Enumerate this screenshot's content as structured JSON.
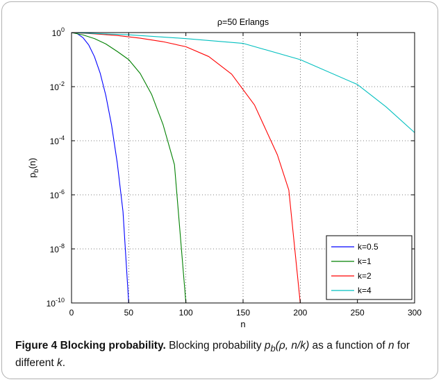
{
  "chart_data": {
    "type": "line",
    "title": "ρ=50 Erlangs",
    "xlabel": "n",
    "ylabel": "p_b(n)",
    "ylabel_main": "p",
    "ylabel_sub": "b",
    "ylabel_tail": "(n)",
    "xlim": [
      0,
      300
    ],
    "ylim": [
      1e-10,
      1
    ],
    "yscale": "log",
    "grid": true,
    "legend_position": "bottom-right",
    "xticks": [
      "0",
      "50",
      "100",
      "150",
      "200",
      "250",
      "300"
    ],
    "yticks": [
      {
        "base": "10",
        "exp": "0"
      },
      {
        "base": "10",
        "exp": "-2"
      },
      {
        "base": "10",
        "exp": "-4"
      },
      {
        "base": "10",
        "exp": "-6"
      },
      {
        "base": "10",
        "exp": "-8"
      },
      {
        "base": "10",
        "exp": "-10"
      }
    ],
    "series": [
      {
        "name": "k=0.5",
        "color": "#0000ff",
        "points": [
          [
            0,
            1
          ],
          [
            5,
            0.91
          ],
          [
            10,
            0.65
          ],
          [
            15,
            0.35
          ],
          [
            20,
            0.13
          ],
          [
            25,
            0.032
          ],
          [
            30,
            0.0047
          ],
          [
            35,
            0.00038
          ],
          [
            40,
            1.5e-05
          ],
          [
            45,
            2.4e-07
          ],
          [
            50,
            1e-10
          ]
        ]
      },
      {
        "name": "k=1",
        "color": "#008000",
        "points": [
          [
            0,
            1
          ],
          [
            10,
            0.82
          ],
          [
            20,
            0.6
          ],
          [
            30,
            0.38
          ],
          [
            40,
            0.2
          ],
          [
            50,
            0.1
          ],
          [
            60,
            0.031
          ],
          [
            70,
            0.0052
          ],
          [
            80,
            0.0004
          ],
          [
            90,
            1.3e-05
          ],
          [
            100,
            1e-10
          ]
        ]
      },
      {
        "name": "k=2",
        "color": "#ff0000",
        "points": [
          [
            0,
            1
          ],
          [
            20,
            0.9
          ],
          [
            40,
            0.78
          ],
          [
            60,
            0.62
          ],
          [
            80,
            0.46
          ],
          [
            100,
            0.3
          ],
          [
            120,
            0.13
          ],
          [
            140,
            0.029
          ],
          [
            160,
            0.0021
          ],
          [
            180,
            3e-05
          ],
          [
            190,
            1.5e-06
          ],
          [
            200,
            1e-10
          ]
        ]
      },
      {
        "name": "k=4",
        "color": "#00bfbf",
        "points": [
          [
            0,
            1
          ],
          [
            50,
            0.83
          ],
          [
            100,
            0.6
          ],
          [
            150,
            0.4
          ],
          [
            200,
            0.1
          ],
          [
            250,
            0.012
          ],
          [
            275,
            0.0018
          ],
          [
            300,
            0.0002
          ]
        ]
      }
    ]
  },
  "caption": {
    "figure_label": "Figure 4",
    "title": "Blocking probability.",
    "text_before": "Blocking probability ",
    "formula": "p",
    "formula_sub": "b",
    "formula_args": "(ρ, n/k)",
    "text_middle": " as a function of ",
    "var_n": "n",
    "text_after_n": " for different ",
    "var_k": "k",
    "text_end": "."
  }
}
